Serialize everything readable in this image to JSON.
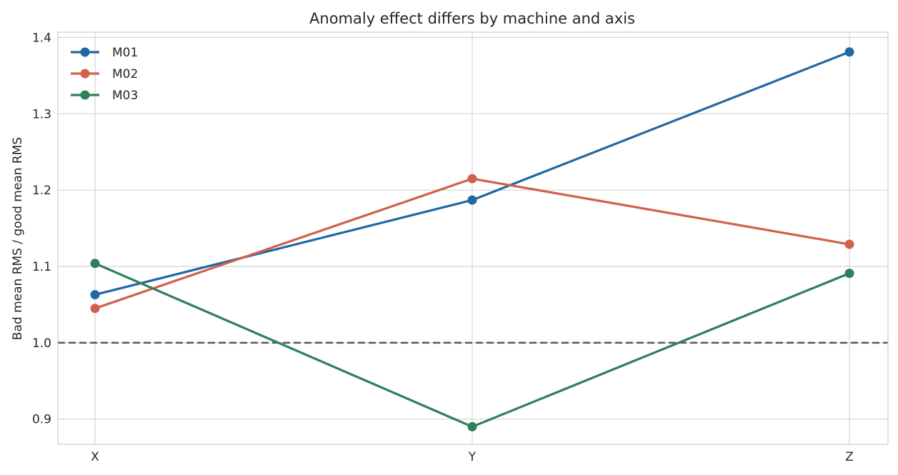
{
  "chart_data": {
    "type": "line",
    "title": "Anomaly effect differs by machine and axis",
    "xlabel": "",
    "ylabel": "Bad mean RMS / good mean RMS",
    "categories": [
      "X",
      "Y",
      "Z"
    ],
    "ylim": [
      0.867,
      1.407
    ],
    "yticks": [
      0.9,
      1.0,
      1.1,
      1.2,
      1.3,
      1.4
    ],
    "ytick_labels": [
      "0.9",
      "1.0",
      "1.1",
      "1.2",
      "1.3",
      "1.4"
    ],
    "grid": true,
    "legend": "top-left",
    "reference_line": {
      "y": 1.0,
      "style": "dashed",
      "color": "#555555"
    },
    "series": [
      {
        "name": "M01",
        "color": "#1f67a5",
        "values": [
          1.063,
          1.187,
          1.381
        ]
      },
      {
        "name": "M02",
        "color": "#d2604a",
        "values": [
          1.045,
          1.215,
          1.129
        ]
      },
      {
        "name": "M03",
        "color": "#2e8059",
        "values": [
          1.104,
          0.89,
          1.091
        ]
      }
    ]
  }
}
